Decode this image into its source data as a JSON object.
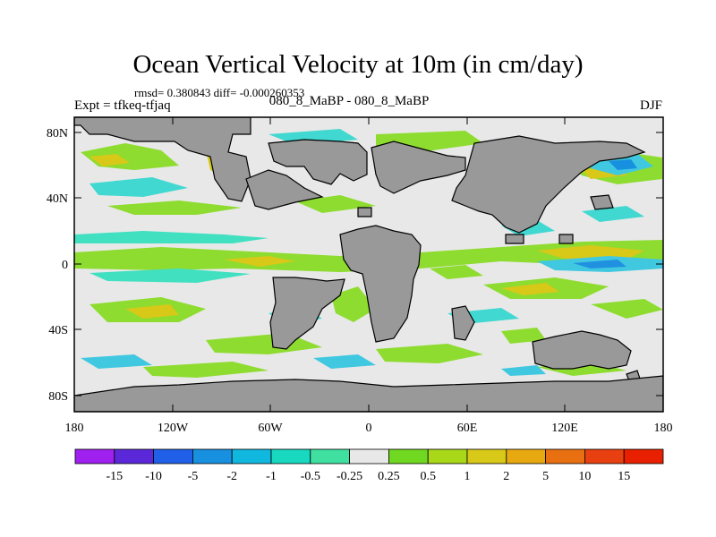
{
  "title": "Ocean Vertical Velocity at 10m (in cm/day)",
  "stats": "rmsd= 0.380843 diff= -0.000260353",
  "expt": "Expt = tfkeq-tfjaq",
  "center_label": "080_8_MaBP - 080_8_MaBP",
  "season": "DJF",
  "lat_labels": [
    "80N",
    "40N",
    "0",
    "40S",
    "80S"
  ],
  "lon_labels": [
    "180",
    "120W",
    "60W",
    "0",
    "60E",
    "120E",
    "180"
  ],
  "colorbar": {
    "labels": [
      "-15",
      "-10",
      "-5",
      "-2",
      "-1",
      "-0.5",
      "-0.25",
      "0.25",
      "0.5",
      "1",
      "2",
      "5",
      "10",
      "15"
    ],
    "colors": [
      "#a020f0",
      "#5a28d8",
      "#2060e8",
      "#1890e0",
      "#10b8e0",
      "#18d8c0",
      "#40e0a0",
      "#e8e8e8",
      "#70d820",
      "#a8d818",
      "#d8c818",
      "#e8a810",
      "#e87010",
      "#e84010",
      "#e82000"
    ]
  }
}
